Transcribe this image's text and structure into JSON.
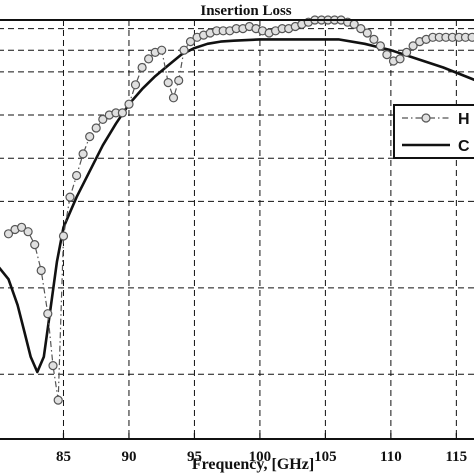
{
  "chart_data": {
    "type": "line",
    "title": "Insertion Loss",
    "xlabel": "Frequency, [GHz]",
    "ylabel": "",
    "xlim": [
      80,
      116.5
    ],
    "ylim": [
      -9.5,
      0.2
    ],
    "x_ticks": [
      85,
      90,
      95,
      100,
      105,
      110,
      115
    ],
    "x_tick_labels": [
      "85",
      "90",
      "95",
      "100",
      "105",
      "110",
      "115"
    ],
    "y_gridlines": [
      -8,
      -6,
      -4,
      -3,
      -2,
      -1,
      -0.5,
      0
    ],
    "grid": true,
    "legend": "right",
    "series": [
      {
        "name": "H",
        "style": "dash-dot with circle markers",
        "color": "#555555",
        "x": [
          80.8,
          81.3,
          81.8,
          82.3,
          82.8,
          83.3,
          83.8,
          84.2,
          84.6,
          85.0,
          85.5,
          86.0,
          86.5,
          87.0,
          87.5,
          88.0,
          88.5,
          89.0,
          89.5,
          90.0,
          90.5,
          91.0,
          91.5,
          92.0,
          92.5,
          93.0,
          93.4,
          93.8,
          94.2,
          94.7,
          95.2,
          95.7,
          96.2,
          96.7,
          97.2,
          97.7,
          98.2,
          98.7,
          99.2,
          99.7,
          100.2,
          100.7,
          101.2,
          101.7,
          102.2,
          102.7,
          103.2,
          103.7,
          104.2,
          104.7,
          105.2,
          105.7,
          106.2,
          106.7,
          107.2,
          107.7,
          108.2,
          108.7,
          109.2,
          109.7,
          110.2,
          110.7,
          111.2,
          111.7,
          112.2,
          112.7,
          113.2,
          113.7,
          114.2,
          114.7,
          115.2,
          115.7,
          116.2
        ],
        "y": [
          -4.75,
          -4.65,
          -4.6,
          -4.7,
          -5.0,
          -5.6,
          -6.6,
          -7.8,
          -8.6,
          -4.8,
          -3.9,
          -3.4,
          -2.9,
          -2.5,
          -2.3,
          -2.1,
          -2.0,
          -1.95,
          -1.95,
          -1.75,
          -1.3,
          -0.9,
          -0.7,
          -0.55,
          -0.5,
          -1.25,
          -1.6,
          -1.2,
          -0.5,
          -0.3,
          -0.2,
          -0.15,
          -0.1,
          -0.05,
          -0.05,
          -0.05,
          0.0,
          0.0,
          0.05,
          0.0,
          -0.05,
          -0.1,
          -0.05,
          0.0,
          0.0,
          0.05,
          0.1,
          0.15,
          0.2,
          0.2,
          0.2,
          0.2,
          0.2,
          0.15,
          0.1,
          0.0,
          -0.1,
          -0.25,
          -0.4,
          -0.6,
          -0.75,
          -0.7,
          -0.55,
          -0.4,
          -0.3,
          -0.25,
          -0.2,
          -0.2,
          -0.2,
          -0.2,
          -0.2,
          -0.2,
          -0.2
        ]
      },
      {
        "name": "C",
        "style": "solid",
        "color": "#111111",
        "x": [
          80.0,
          80.8,
          81.5,
          82.0,
          82.5,
          83.0,
          83.5,
          84.0,
          84.5,
          85.0,
          86.0,
          87.0,
          88.0,
          89.0,
          90.0,
          91.0,
          92.0,
          93.0,
          94.0,
          95.0,
          96.0,
          97.0,
          98.0,
          100.0,
          102.0,
          104.0,
          106.0,
          108.0,
          110.0,
          112.0,
          114.0,
          116.5
        ],
        "y": [
          -5.5,
          -5.8,
          -6.4,
          -7.0,
          -7.6,
          -7.95,
          -7.6,
          -6.5,
          -5.4,
          -4.6,
          -3.9,
          -3.3,
          -2.7,
          -2.2,
          -1.75,
          -1.4,
          -1.1,
          -0.85,
          -0.6,
          -0.45,
          -0.35,
          -0.3,
          -0.28,
          -0.25,
          -0.25,
          -0.25,
          -0.25,
          -0.35,
          -0.5,
          -0.7,
          -0.9,
          -1.2
        ]
      }
    ]
  }
}
